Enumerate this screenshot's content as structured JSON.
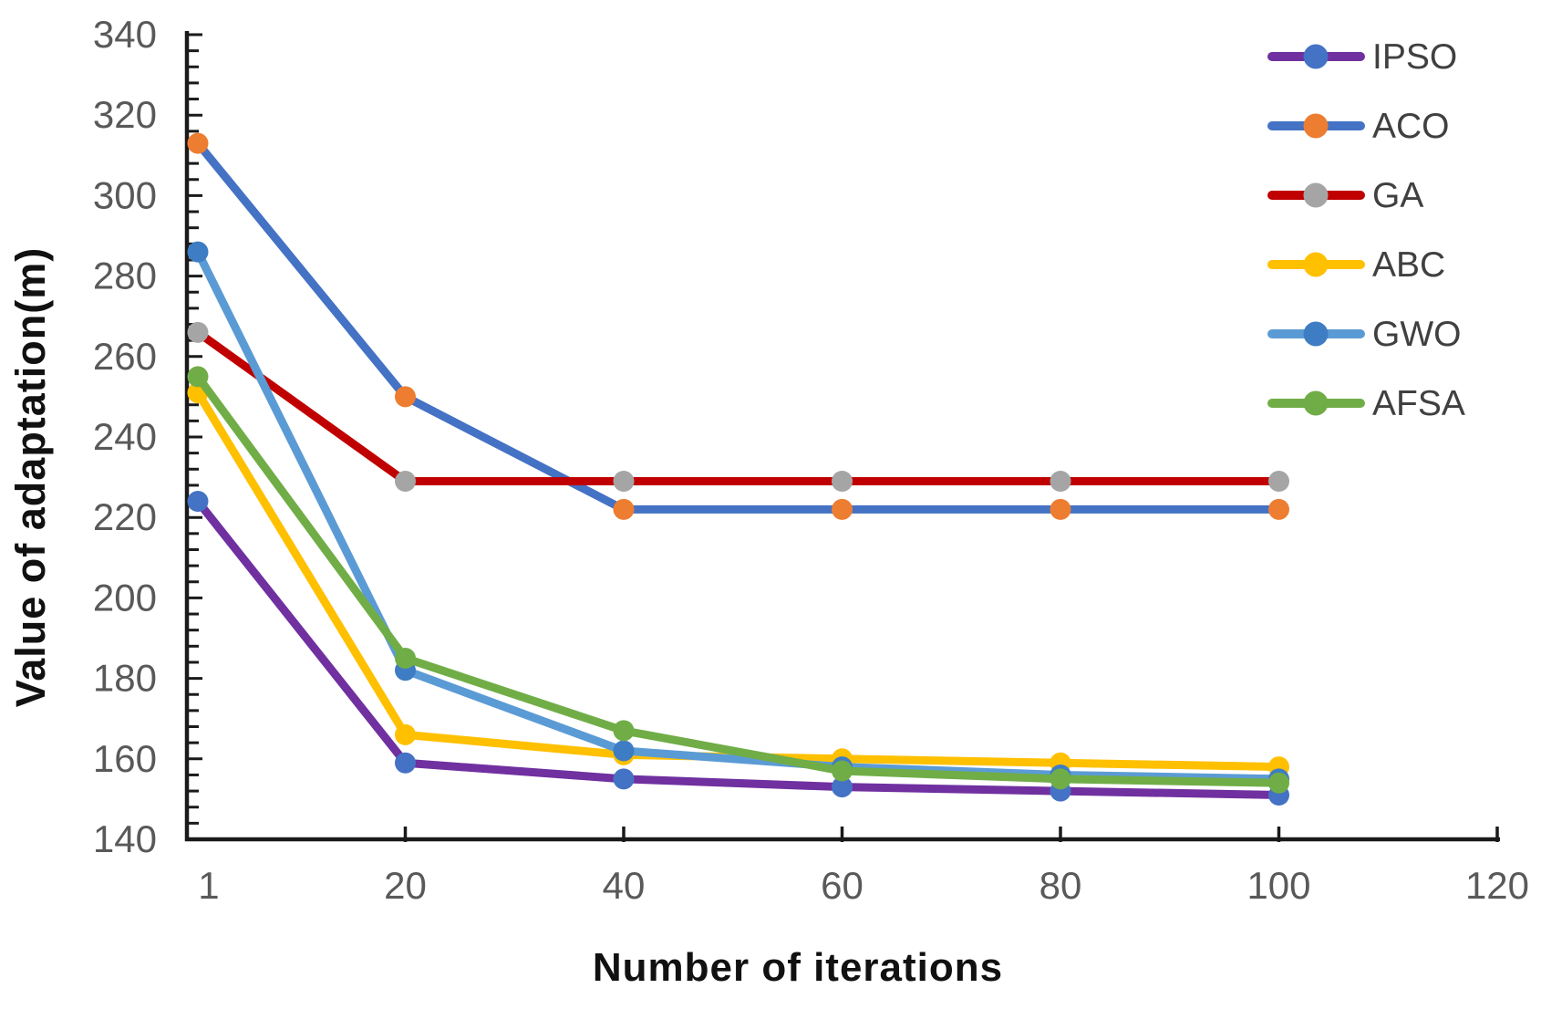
{
  "chart_data": {
    "type": "line",
    "title": "",
    "xlabel": "Number of iterations",
    "ylabel": "Value of adaptation(m)",
    "x": [
      1,
      20,
      40,
      60,
      80,
      100
    ],
    "series": [
      {
        "name": "IPSO",
        "line_color": "#7030A0",
        "marker_color": "#4472C4",
        "values": [
          224,
          159,
          155,
          153,
          152,
          151
        ]
      },
      {
        "name": "ACO",
        "line_color": "#4472C4",
        "marker_color": "#ED7D31",
        "values": [
          313,
          250,
          222,
          222,
          222,
          222
        ]
      },
      {
        "name": "GA",
        "line_color": "#C00000",
        "marker_color": "#A5A5A5",
        "values": [
          266,
          229,
          229,
          229,
          229,
          229
        ]
      },
      {
        "name": "ABC",
        "line_color": "#FFC000",
        "marker_color": "#FFC000",
        "values": [
          251,
          166,
          161,
          160,
          159,
          158
        ]
      },
      {
        "name": "GWO",
        "line_color": "#5B9BD5",
        "marker_color": "#3E7CC3",
        "values": [
          286,
          182,
          162,
          158,
          156,
          155
        ]
      },
      {
        "name": "AFSA",
        "line_color": "#70AD47",
        "marker_color": "#70AD47",
        "values": [
          255,
          185,
          167,
          157,
          155,
          154
        ]
      }
    ],
    "x_ticks": [
      1,
      20,
      40,
      60,
      80,
      100,
      120
    ],
    "y_ticks": [
      140,
      160,
      180,
      200,
      220,
      240,
      260,
      280,
      300,
      320,
      340
    ],
    "xlim": [
      0,
      120
    ],
    "ylim": [
      140,
      340
    ],
    "y_minor_step": 4,
    "grid": false,
    "legend_position": "top-right",
    "colors": {
      "axis": "#1a1a1a",
      "tick_label": "#595959",
      "legend_label": "#404040",
      "background": "#ffffff"
    }
  }
}
